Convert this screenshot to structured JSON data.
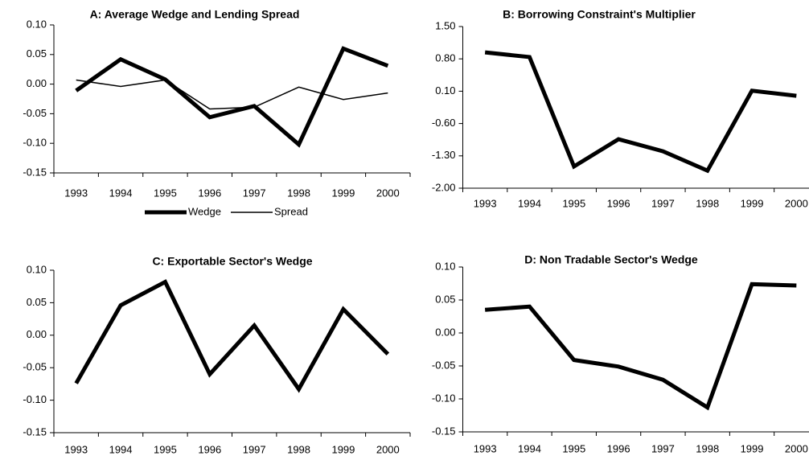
{
  "chart_data": [
    {
      "type": "line",
      "title": "A:  Average Wedge and Lending Spread",
      "categories": [
        "1993",
        "1994",
        "1995",
        "1996",
        "1997",
        "1998",
        "1999",
        "2000"
      ],
      "series": [
        {
          "name": "Wedge",
          "color": "#000000",
          "values": [
            -0.011,
            0.042,
            0.008,
            -0.056,
            -0.037,
            -0.102,
            0.06,
            0.031
          ]
        },
        {
          "name": "Spread",
          "color": "#000000",
          "values": [
            0.007,
            -0.004,
            0.007,
            -0.042,
            -0.039,
            -0.005,
            -0.026,
            -0.015
          ]
        }
      ],
      "ylim": [
        -0.15,
        0.1
      ],
      "yticks": [
        {
          "value": -0.15,
          "label": "-0.15"
        },
        {
          "value": -0.1,
          "label": "-0.10"
        },
        {
          "value": -0.05,
          "label": "-0.05"
        },
        {
          "value": 0,
          "label": "0.00"
        },
        {
          "value": 0.05,
          "label": "0.05"
        },
        {
          "value": 0.1,
          "label": "0.10"
        }
      ],
      "legend": "bottom"
    },
    {
      "type": "line",
      "title": "B:  Borrowing Constraint's Multiplier",
      "categories": [
        "1993",
        "1994",
        "1995",
        "1996",
        "1997",
        "1998",
        "1999",
        "2000"
      ],
      "series": [
        {
          "color": "#000000",
          "values": [
            0.94,
            0.84,
            -1.53,
            -0.94,
            -1.2,
            -1.62,
            0.11,
            0.0
          ]
        }
      ],
      "ylim": [
        -2.0,
        1.5
      ],
      "yticks": [
        {
          "value": -2.0,
          "label": "-2.00"
        },
        {
          "value": -1.3,
          "label": "-1.30"
        },
        {
          "value": -0.6,
          "label": "-0.60"
        },
        {
          "value": 0.1,
          "label": "0.10"
        },
        {
          "value": 0.8,
          "label": "0.80"
        },
        {
          "value": 1.5,
          "label": "1.50"
        }
      ]
    },
    {
      "type": "line",
      "title": "C:  Exportable Sector's Wedge",
      "categories": [
        "1993",
        "1994",
        "1995",
        "1996",
        "1997",
        "1998",
        "1999",
        "2000"
      ],
      "series": [
        {
          "color": "#000000",
          "values": [
            -0.074,
            0.046,
            0.082,
            -0.06,
            0.015,
            -0.083,
            0.04,
            -0.029
          ]
        }
      ],
      "ylim": [
        -0.15,
        0.1
      ],
      "yticks": [
        {
          "value": -0.15,
          "label": "-0.15"
        },
        {
          "value": -0.1,
          "label": "-0.10"
        },
        {
          "value": -0.05,
          "label": "-0.05"
        },
        {
          "value": 0,
          "label": "0.00"
        },
        {
          "value": 0.05,
          "label": "0.05"
        },
        {
          "value": 0.1,
          "label": "0.10"
        }
      ]
    },
    {
      "type": "line",
      "title": "D:  Non Tradable Sector's Wedge",
      "categories": [
        "1993",
        "1994",
        "1995",
        "1996",
        "1997",
        "1998",
        "1999",
        "2000"
      ],
      "series": [
        {
          "color": "#000000",
          "values": [
            0.035,
            0.04,
            -0.041,
            -0.051,
            -0.071,
            -0.113,
            0.074,
            0.072
          ]
        }
      ],
      "ylim": [
        -0.15,
        0.1
      ],
      "yticks": [
        {
          "value": -0.15,
          "label": "-0.15"
        },
        {
          "value": -0.1,
          "label": "-0.10"
        },
        {
          "value": -0.05,
          "label": "-0.05"
        },
        {
          "value": 0,
          "label": "0.00"
        },
        {
          "value": 0.05,
          "label": "0.05"
        },
        {
          "value": 0.1,
          "label": "0.10"
        }
      ]
    }
  ]
}
